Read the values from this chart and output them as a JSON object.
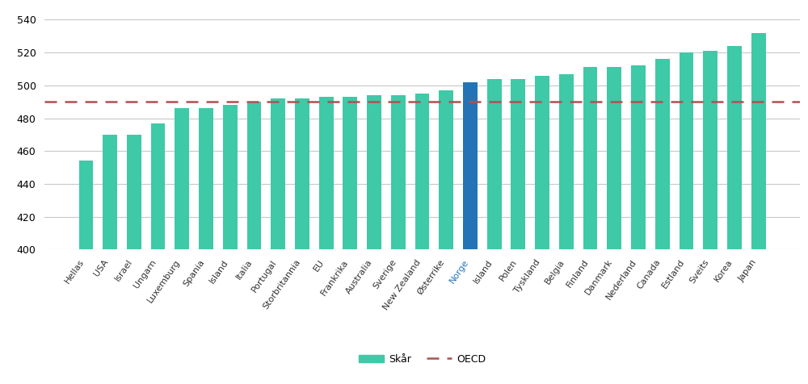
{
  "categories": [
    "Hellas",
    "USA",
    "Israel",
    "Ungarn",
    "Luxemburg",
    "Spania",
    "Island",
    "Italia",
    "Portugal",
    "Storbritannia",
    "EU",
    "Frankrika",
    "Australia",
    "Sverige",
    "New Zealand",
    "Østerrike",
    "Norge",
    "Island",
    "Polen",
    "Tyskland",
    "Belgia",
    "Finland",
    "Danmark",
    "Nederland",
    "Canada",
    "Estland",
    "Sveits",
    "Korea",
    "Japan"
  ],
  "values": [
    454,
    470,
    470,
    477,
    486,
    486,
    488,
    490,
    492,
    492,
    493,
    493,
    494,
    494,
    495,
    497,
    502,
    504,
    504,
    506,
    507,
    511,
    511,
    512,
    516,
    520,
    521,
    524,
    532
  ],
  "bar_colors": [
    "#3ec9a7",
    "#3ec9a7",
    "#3ec9a7",
    "#3ec9a7",
    "#3ec9a7",
    "#3ec9a7",
    "#3ec9a7",
    "#3ec9a7",
    "#3ec9a7",
    "#3ec9a7",
    "#3ec9a7",
    "#3ec9a7",
    "#3ec9a7",
    "#3ec9a7",
    "#3ec9a7",
    "#3ec9a7",
    "#2474b5",
    "#3ec9a7",
    "#3ec9a7",
    "#3ec9a7",
    "#3ec9a7",
    "#3ec9a7",
    "#3ec9a7",
    "#3ec9a7",
    "#3ec9a7",
    "#3ec9a7",
    "#3ec9a7",
    "#3ec9a7",
    "#3ec9a7"
  ],
  "norge_label_color": "#2474b5",
  "oecd_line_value": 490,
  "oecd_line_color": "#b05050",
  "ylim": [
    400,
    545
  ],
  "yticks": [
    400,
    420,
    440,
    460,
    480,
    500,
    520,
    540
  ],
  "ylabel": "",
  "xlabel": "",
  "legend_skaar_label": "Skår",
  "legend_oecd_label": "OECD",
  "bar_color_main": "#3ec9a7",
  "grid_color": "#c8c8c8",
  "background_color": "#ffffff",
  "bar_width": 0.6
}
